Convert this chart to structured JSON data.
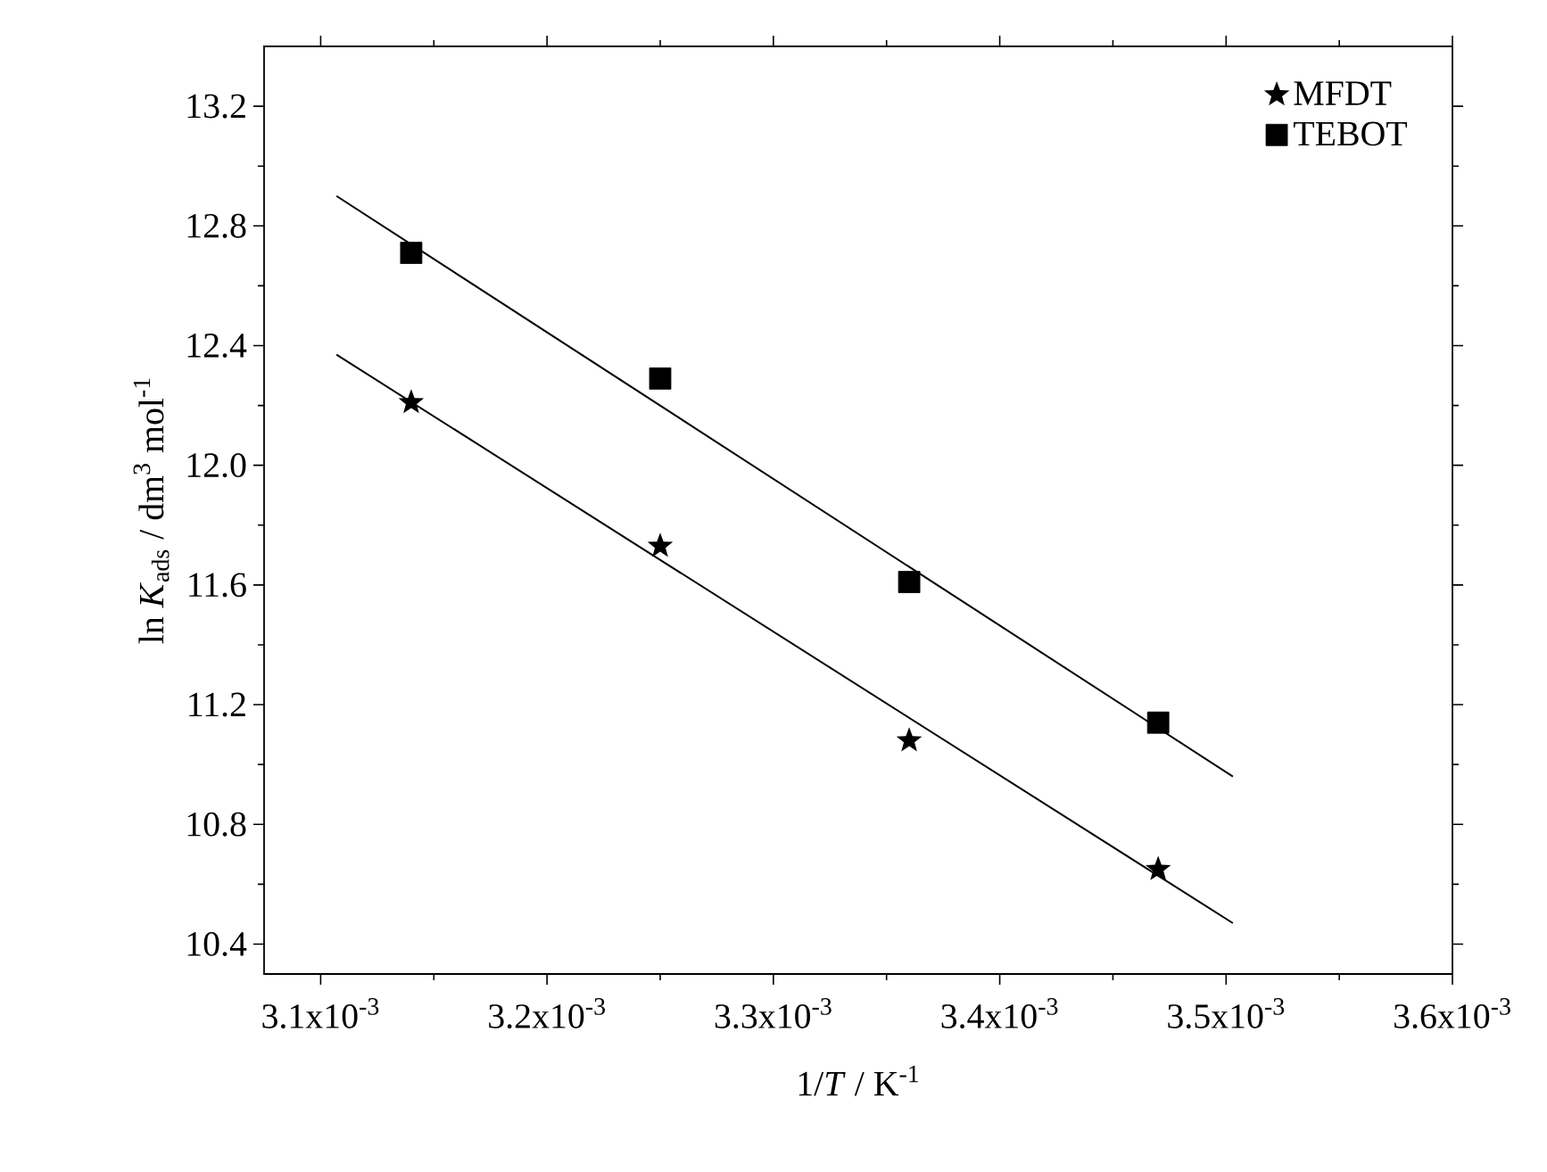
{
  "chart_data": {
    "type": "scatter",
    "xlabel": "1/*T* / K$^{-1}$",
    "ylabel": "ln *K*$_{ads}$ / dm$^{3}$ mol$^{-1}$",
    "xlim": [
      0.003075,
      0.0036
    ],
    "ylim": [
      10.3,
      13.4
    ],
    "xticks": [
      {
        "value": 0.0031,
        "label": "3.1x10$^{-3}$"
      },
      {
        "value": 0.0032,
        "label": "3.2x10$^{-3}$"
      },
      {
        "value": 0.0033,
        "label": "3.3x10$^{-3}$"
      },
      {
        "value": 0.0034,
        "label": "3.4x10$^{-3}$"
      },
      {
        "value": 0.0035,
        "label": "3.5x10$^{-3}$"
      },
      {
        "value": 0.0036,
        "label": "3.6x10$^{-3}$"
      }
    ],
    "yticks": [
      {
        "value": 10.4,
        "label": "10.4"
      },
      {
        "value": 10.8,
        "label": "10.8"
      },
      {
        "value": 11.2,
        "label": "11.2"
      },
      {
        "value": 11.6,
        "label": "11.6"
      },
      {
        "value": 12.0,
        "label": "12.0"
      },
      {
        "value": 12.4,
        "label": "12.4"
      },
      {
        "value": 12.8,
        "label": "12.8"
      },
      {
        "value": 13.2,
        "label": "13.2"
      }
    ],
    "legend": "top right",
    "grid": false,
    "series": [
      {
        "name": "MFDT",
        "type": "scatter",
        "marker": "star",
        "color": "#000000",
        "x": [
          0.00314,
          0.00325,
          0.00336,
          0.00347
        ],
        "values": [
          12.21,
          11.73,
          11.08,
          10.65
        ]
      },
      {
        "name": "TEBOT",
        "type": "scatter",
        "marker": "square",
        "color": "#000000",
        "x": [
          0.00314,
          0.00325,
          0.00336,
          0.00347
        ],
        "values": [
          12.71,
          12.29,
          11.61,
          11.14
        ]
      },
      {
        "type": "line",
        "marker": "none",
        "line_style": "solid",
        "color": "#000000",
        "x": [
          0.003107,
          0.003503
        ],
        "values": [
          12.37,
          10.47
        ]
      },
      {
        "type": "line",
        "marker": "none",
        "line_style": "solid",
        "color": "#000000",
        "x": [
          0.003107,
          0.003503
        ],
        "values": [
          12.9,
          10.96
        ]
      }
    ]
  }
}
